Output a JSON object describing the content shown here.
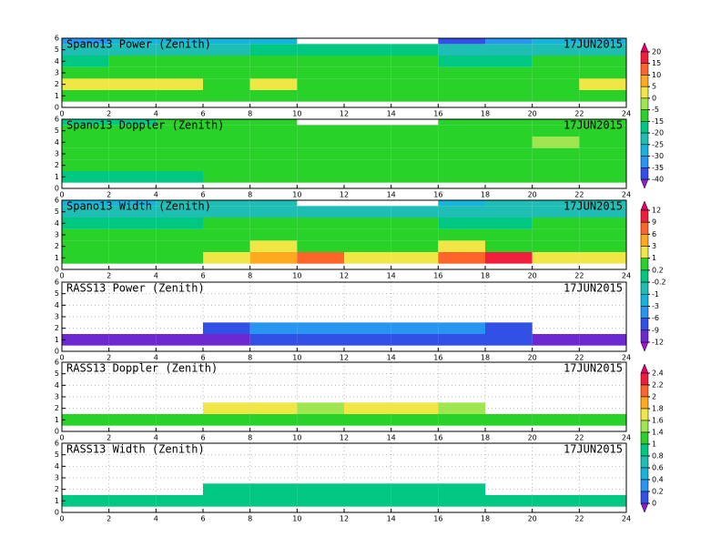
{
  "chart_data": [
    {
      "type": "heatmap",
      "title": "Spano13 Power (Zenith)",
      "date": "17JUN2015",
      "xlim": [
        0,
        24
      ],
      "xticks": [
        0,
        2,
        4,
        6,
        8,
        10,
        12,
        14,
        16,
        18,
        20,
        22,
        24
      ],
      "ylim": [
        0,
        6
      ],
      "yticks": [
        0,
        1,
        2,
        3,
        4,
        5,
        6
      ],
      "grid": false,
      "x_edges": [
        0,
        2,
        4,
        6,
        8,
        10,
        12,
        14,
        16,
        18,
        20,
        22,
        24
      ],
      "y_edges": [
        0.5,
        1.5,
        2.5,
        3.5,
        4.5,
        5.5,
        6
      ],
      "values": [
        [
          -7,
          -7,
          -7,
          -7,
          -7,
          -7,
          -7,
          -7,
          -7,
          -7,
          -7,
          -7
        ],
        [
          2,
          2,
          2,
          -7,
          2,
          -7,
          -7,
          -7,
          -7,
          -7,
          -7,
          2
        ],
        [
          -7,
          -7,
          -7,
          -7,
          -7,
          -7,
          -7,
          -7,
          -7,
          -7,
          -7,
          -7
        ],
        [
          -17,
          -12,
          -12,
          -12,
          -12,
          -12,
          -12,
          -12,
          -17,
          -17,
          -12,
          -12
        ],
        [
          -22,
          -22,
          -22,
          -22,
          -17,
          -17,
          -17,
          -17,
          -22,
          -22,
          -22,
          -22
        ],
        [
          -32,
          -27,
          -27,
          -27,
          -27,
          null,
          null,
          null,
          -37,
          -32,
          -27,
          -27
        ]
      ]
    },
    {
      "type": "heatmap",
      "title": "Spano13 Doppler (Zenith)",
      "date": "17JUN2015",
      "xlim": [
        0,
        24
      ],
      "xticks": [
        0,
        2,
        4,
        6,
        8,
        10,
        12,
        14,
        16,
        18,
        20,
        22,
        24
      ],
      "ylim": [
        0,
        6
      ],
      "yticks": [
        0,
        1,
        2,
        3,
        4,
        5,
        6
      ],
      "grid": false,
      "x_edges": [
        0,
        2,
        4,
        6,
        8,
        10,
        12,
        14,
        16,
        18,
        20,
        22,
        24
      ],
      "y_edges": [
        0.5,
        1.5,
        2.5,
        3.5,
        4.5,
        5.5,
        6
      ],
      "values": [
        [
          -17,
          -17,
          -17,
          -12,
          -12,
          -12,
          -12,
          -12,
          -12,
          -12,
          -12,
          -12
        ],
        [
          -12,
          -12,
          -7,
          -7,
          -12,
          -7,
          -7,
          -12,
          -7,
          -12,
          -7,
          -12
        ],
        [
          -12,
          -7,
          -7,
          -7,
          -7,
          -7,
          -7,
          -7,
          -7,
          -7,
          -7,
          -7
        ],
        [
          -7,
          -12,
          -7,
          -7,
          -7,
          -7,
          -7,
          -7,
          -7,
          -7,
          -2,
          -7
        ],
        [
          -12,
          -12,
          -7,
          -7,
          -7,
          -7,
          -7,
          -7,
          -7,
          -7,
          -7,
          -7
        ],
        [
          -17,
          -17,
          -12,
          -7,
          -7,
          null,
          null,
          null,
          -7,
          -7,
          -12,
          -12
        ]
      ]
    },
    {
      "type": "heatmap",
      "title": "Spano13 Width (Zenith)",
      "date": "17JUN2015",
      "xlim": [
        0,
        24
      ],
      "xticks": [
        0,
        2,
        4,
        6,
        8,
        10,
        12,
        14,
        16,
        18,
        20,
        22,
        24
      ],
      "ylim": [
        0,
        6
      ],
      "yticks": [
        0,
        1,
        2,
        3,
        4,
        5,
        6
      ],
      "grid": false,
      "x_edges": [
        0,
        2,
        4,
        6,
        8,
        10,
        12,
        14,
        16,
        18,
        20,
        22,
        24
      ],
      "y_edges": [
        0.5,
        1.5,
        2.5,
        3.5,
        4.5,
        5.5,
        6
      ],
      "values": [
        [
          0.5,
          0.5,
          0.5,
          2,
          4,
          7,
          2,
          2,
          7,
          10,
          2,
          2
        ],
        [
          0.5,
          0.5,
          0.5,
          0.5,
          2,
          0.5,
          0.5,
          0.5,
          2,
          0.5,
          0.5,
          0.5
        ],
        [
          0.5,
          0.5,
          0.5,
          0.5,
          0.5,
          0.5,
          0.5,
          0.5,
          0.5,
          0.5,
          0.5,
          0.5
        ],
        [
          0,
          0,
          0,
          0.5,
          0.5,
          0.5,
          0.5,
          0.5,
          0,
          0,
          0.5,
          0.5
        ],
        [
          -0.5,
          -0.5,
          -0.5,
          -0.5,
          -0.5,
          -0.5,
          -0.5,
          -0.5,
          -0.5,
          -0.5,
          -0.5,
          -0.5
        ],
        [
          -2,
          -2,
          -0.5,
          -0.5,
          -0.5,
          null,
          null,
          null,
          -2,
          -0.5,
          -0.5,
          -0.5
        ]
      ]
    },
    {
      "type": "heatmap",
      "title": "RASS13 Power (Zenith)",
      "date": "17JUN2015",
      "xlim": [
        0,
        24
      ],
      "xticks": [
        0,
        2,
        4,
        6,
        8,
        10,
        12,
        14,
        16,
        18,
        20,
        22,
        24
      ],
      "ylim": [
        0,
        6
      ],
      "yticks": [
        0,
        1,
        2,
        3,
        4,
        5,
        6
      ],
      "grid": true,
      "x_edges": [
        0,
        2,
        4,
        6,
        8,
        10,
        12,
        14,
        16,
        18,
        20,
        22,
        24
      ],
      "y_edges": [
        0.5,
        1.5,
        2.5,
        3.5,
        4.5,
        5.5,
        6
      ],
      "values": [
        [
          -10,
          -10,
          -10,
          -10,
          -7,
          -7,
          -7,
          -7,
          -7,
          -7,
          -10,
          -10
        ],
        [
          null,
          null,
          null,
          -7,
          -4,
          -4,
          -4,
          -4,
          -4,
          -7,
          null,
          null
        ],
        [
          null,
          null,
          null,
          null,
          null,
          null,
          null,
          null,
          null,
          null,
          null,
          null
        ],
        [
          null,
          null,
          null,
          null,
          null,
          null,
          null,
          null,
          null,
          null,
          null,
          null
        ],
        [
          null,
          null,
          null,
          null,
          null,
          null,
          null,
          null,
          null,
          null,
          null,
          null
        ],
        [
          null,
          null,
          null,
          null,
          null,
          null,
          null,
          null,
          null,
          null,
          null,
          null
        ]
      ]
    },
    {
      "type": "heatmap",
      "title": "RASS13 Doppler (Zenith)",
      "date": "17JUN2015",
      "xlim": [
        0,
        24
      ],
      "xticks": [
        0,
        2,
        4,
        6,
        8,
        10,
        12,
        14,
        16,
        18,
        20,
        22,
        24
      ],
      "ylim": [
        0,
        6
      ],
      "yticks": [
        0,
        1,
        2,
        3,
        4,
        5,
        6
      ],
      "grid": true,
      "x_edges": [
        0,
        2,
        4,
        6,
        8,
        10,
        12,
        14,
        16,
        18,
        20,
        22,
        24
      ],
      "y_edges": [
        0.5,
        1.5,
        2.5,
        3.5,
        4.5,
        5.5,
        6
      ],
      "values": [
        [
          1.1,
          1.1,
          1.1,
          1.1,
          1.3,
          1.3,
          1.3,
          1.3,
          1.3,
          1.1,
          1.1,
          1.1
        ],
        [
          null,
          null,
          null,
          1.7,
          1.7,
          1.5,
          1.7,
          1.7,
          1.5,
          null,
          null,
          null
        ],
        [
          null,
          null,
          null,
          null,
          null,
          null,
          null,
          null,
          null,
          null,
          null,
          null
        ],
        [
          null,
          null,
          null,
          null,
          null,
          null,
          null,
          null,
          null,
          null,
          null,
          null
        ],
        [
          null,
          null,
          null,
          null,
          null,
          null,
          null,
          null,
          null,
          null,
          null,
          null
        ],
        [
          null,
          null,
          null,
          null,
          null,
          null,
          null,
          null,
          null,
          null,
          null,
          null
        ]
      ]
    },
    {
      "type": "heatmap",
      "title": "RASS13 Width (Zenith)",
      "date": "17JUN2015",
      "xlim": [
        0,
        24
      ],
      "xticks": [
        0,
        2,
        4,
        6,
        8,
        10,
        12,
        14,
        16,
        18,
        20,
        22,
        24
      ],
      "ylim": [
        0,
        6
      ],
      "yticks": [
        0,
        1,
        2,
        3,
        4,
        5,
        6
      ],
      "grid": true,
      "x_edges": [
        0,
        2,
        4,
        6,
        8,
        10,
        12,
        14,
        16,
        18,
        20,
        22,
        24
      ],
      "y_edges": [
        0.5,
        1.5,
        2.5,
        3.5,
        4.5,
        5.5,
        6
      ],
      "values": [
        [
          0.9,
          0.9,
          0.9,
          0.9,
          0.9,
          0.9,
          0.9,
          0.9,
          0.9,
          0.9,
          0.9,
          0.9
        ],
        [
          null,
          null,
          null,
          0.9,
          0.9,
          0.9,
          0.9,
          0.9,
          0.9,
          null,
          null,
          null
        ],
        [
          null,
          null,
          null,
          null,
          null,
          null,
          null,
          null,
          null,
          null,
          null,
          null
        ],
        [
          null,
          null,
          null,
          null,
          null,
          null,
          null,
          null,
          null,
          null,
          null,
          null
        ],
        [
          null,
          null,
          null,
          null,
          null,
          null,
          null,
          null,
          null,
          null,
          null,
          null
        ],
        [
          null,
          null,
          null,
          null,
          null,
          null,
          null,
          null,
          null,
          null,
          null,
          null
        ]
      ]
    }
  ],
  "colorbars": [
    {
      "ticks": [
        20,
        15,
        10,
        5,
        0,
        -5,
        -15,
        -20,
        -25,
        -30,
        -35,
        -40
      ],
      "colors": [
        "#e6006e",
        "#f01e3c",
        "#ff6428",
        "#ffaa1e",
        "#f0e646",
        "#a0e650",
        "#28d228",
        "#00c882",
        "#1ebeb4",
        "#14b4dc",
        "#2896f0",
        "#3250e6",
        "#8c1ed2"
      ]
    },
    {
      "ticks": [
        12,
        9,
        6,
        3,
        1,
        0.2,
        -0.2,
        -1,
        -3,
        -6,
        -9,
        -12
      ],
      "colors": [
        "#e6006e",
        "#f01e3c",
        "#ff6428",
        "#ffaa1e",
        "#f0e646",
        "#28d228",
        "#00c882",
        "#1ebeb4",
        "#14b4dc",
        "#2896f0",
        "#3250e6",
        "#6e28d2",
        "#a014d2"
      ]
    },
    {
      "ticks": [
        2.4,
        2.2,
        2,
        1.8,
        1.6,
        1.4,
        1,
        0.8,
        0.6,
        0.4,
        0.2,
        0
      ],
      "colors": [
        "#e6006e",
        "#f01e3c",
        "#ff6428",
        "#ffaa1e",
        "#f0e646",
        "#a0e650",
        "#28d228",
        "#00c882",
        "#1ebeb4",
        "#14b4dc",
        "#2896f0",
        "#3250e6",
        "#8c1ed2"
      ]
    }
  ]
}
